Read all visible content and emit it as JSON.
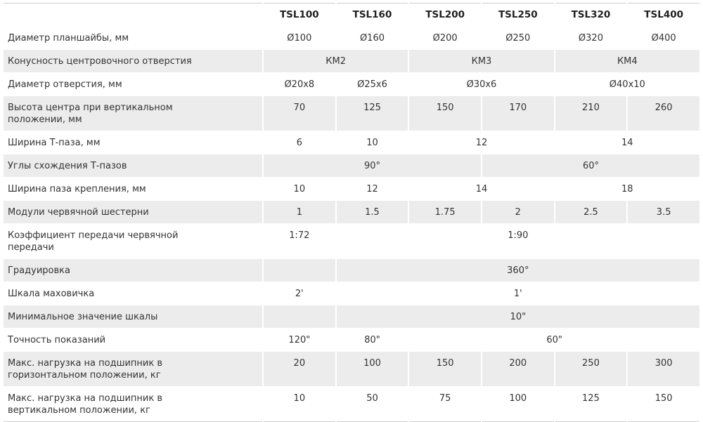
{
  "table": {
    "colors": {
      "row_shade": "#ececec",
      "border": "#cfcfcf",
      "text": "#333333"
    },
    "columns": [
      "",
      "TSL100",
      "TSL160",
      "TSL200",
      "TSL250",
      "TSL320",
      "TSL400"
    ],
    "rows": [
      {
        "label": "Диаметр планшайбы, мм",
        "cells": [
          {
            "v": "Ø100",
            "span": 1
          },
          {
            "v": "Ø160",
            "span": 1
          },
          {
            "v": "Ø200",
            "span": 1
          },
          {
            "v": "Ø250",
            "span": 1
          },
          {
            "v": "Ø320",
            "span": 1
          },
          {
            "v": "Ø400",
            "span": 1
          }
        ]
      },
      {
        "label": "Конусность центровочного отверстия",
        "cells": [
          {
            "v": "КМ2",
            "span": 2
          },
          {
            "v": "КМ3",
            "span": 2
          },
          {
            "v": "КМ4",
            "span": 2
          }
        ]
      },
      {
        "label": "Диаметр отверстия, мм",
        "cells": [
          {
            "v": "Ø20x8",
            "span": 1
          },
          {
            "v": "Ø25x6",
            "span": 1
          },
          {
            "v": "Ø30x6",
            "span": 2
          },
          {
            "v": "Ø40x10",
            "span": 2
          }
        ]
      },
      {
        "label": "Высота центра при вертикальном положении, мм",
        "cells": [
          {
            "v": "70",
            "span": 1
          },
          {
            "v": "125",
            "span": 1
          },
          {
            "v": "150",
            "span": 1
          },
          {
            "v": "170",
            "span": 1
          },
          {
            "v": "210",
            "span": 1
          },
          {
            "v": "260",
            "span": 1
          }
        ]
      },
      {
        "label": "Ширина Т-паза, мм",
        "cells": [
          {
            "v": "6",
            "span": 1
          },
          {
            "v": "10",
            "span": 1
          },
          {
            "v": "12",
            "span": 2
          },
          {
            "v": "14",
            "span": 2
          }
        ]
      },
      {
        "label": "Углы схождения Т-пазов",
        "cells": [
          {
            "v": "90°",
            "span": 3
          },
          {
            "v": "60°",
            "span": 3
          }
        ]
      },
      {
        "label": "Ширина паза крепления, мм",
        "cells": [
          {
            "v": "10",
            "span": 1
          },
          {
            "v": "12",
            "span": 1
          },
          {
            "v": "14",
            "span": 2
          },
          {
            "v": "18",
            "span": 2
          }
        ]
      },
      {
        "label": "Модули червячной шестерни",
        "cells": [
          {
            "v": "1",
            "span": 1
          },
          {
            "v": "1.5",
            "span": 1
          },
          {
            "v": "1.75",
            "span": 1
          },
          {
            "v": "2",
            "span": 1
          },
          {
            "v": "2.5",
            "span": 1
          },
          {
            "v": "3.5",
            "span": 1
          }
        ]
      },
      {
        "label": "Коэффициент передачи червячной передачи",
        "cells": [
          {
            "v": "1:72",
            "span": 1
          },
          {
            "v": "1:90",
            "span": 5
          }
        ]
      },
      {
        "label": "Градуировка",
        "cells": [
          {
            "v": "",
            "span": 1
          },
          {
            "v": "360°",
            "span": 5
          }
        ]
      },
      {
        "label": "Шкала маховичка",
        "cells": [
          {
            "v": "2'",
            "span": 1
          },
          {
            "v": "1'",
            "span": 5
          }
        ]
      },
      {
        "label": "Минимальное значение шкалы",
        "cells": [
          {
            "v": "",
            "span": 1
          },
          {
            "v": "10\"",
            "span": 5
          }
        ]
      },
      {
        "label": "Точность показаний",
        "cells": [
          {
            "v": "120\"",
            "span": 1
          },
          {
            "v": "80\"",
            "span": 1
          },
          {
            "v": "60\"",
            "span": 4
          }
        ]
      },
      {
        "label": "Макс. нагрузка на подшипник в горизонтальном положении, кг",
        "cells": [
          {
            "v": "20",
            "span": 1
          },
          {
            "v": "100",
            "span": 1
          },
          {
            "v": "150",
            "span": 1
          },
          {
            "v": "200",
            "span": 1
          },
          {
            "v": "250",
            "span": 1
          },
          {
            "v": "300",
            "span": 1
          }
        ]
      },
      {
        "label": "Макс. нагрузка на подшипник в вертикальном положении, кг",
        "cells": [
          {
            "v": "10",
            "span": 1
          },
          {
            "v": "50",
            "span": 1
          },
          {
            "v": "75",
            "span": 1
          },
          {
            "v": "100",
            "span": 1
          },
          {
            "v": "125",
            "span": 1
          },
          {
            "v": "150",
            "span": 1
          }
        ]
      }
    ]
  }
}
